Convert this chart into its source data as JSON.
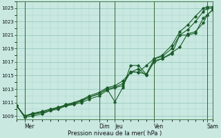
{
  "xlabel": "Pression niveau de la mer( hPa )",
  "background_color": "#c8e8e0",
  "grid_major_color": "#90c4b8",
  "grid_minor_color": "#a8d4cc",
  "line_color": "#1a5c28",
  "ylim": [
    1008.5,
    1026.0
  ],
  "yticks": [
    1009,
    1011,
    1013,
    1015,
    1017,
    1019,
    1021,
    1023,
    1025
  ],
  "xlim": [
    0,
    1.0
  ],
  "day_labels": [
    "Mer",
    "Dim",
    "Jeu",
    "Ven",
    "Sam"
  ],
  "day_positions": [
    0.04,
    0.42,
    0.5,
    0.7,
    0.97
  ],
  "lines": [
    {
      "x": [
        0.0,
        0.04,
        0.08,
        0.13,
        0.17,
        0.21,
        0.25,
        0.29,
        0.33,
        0.37,
        0.42,
        0.46,
        0.5,
        0.54,
        0.58,
        0.62,
        0.66,
        0.7,
        0.74,
        0.79,
        0.83,
        0.87,
        0.91,
        0.95,
        0.97,
        1.0
      ],
      "y": [
        1010.5,
        1009.0,
        1009.2,
        1009.5,
        1009.8,
        1010.2,
        1010.5,
        1010.7,
        1011.0,
        1011.5,
        1012.0,
        1012.8,
        1013.2,
        1013.5,
        1015.6,
        1015.5,
        1015.2,
        1017.0,
        1017.5,
        1018.2,
        1021.0,
        1021.0,
        1021.3,
        1023.5,
        1024.0,
        1024.8
      ]
    },
    {
      "x": [
        0.0,
        0.04,
        0.08,
        0.13,
        0.17,
        0.21,
        0.25,
        0.29,
        0.33,
        0.37,
        0.42,
        0.46,
        0.5,
        0.54,
        0.58,
        0.62,
        0.66,
        0.7,
        0.74,
        0.79,
        0.83,
        0.87,
        0.91,
        0.95,
        0.97,
        1.0
      ],
      "y": [
        1010.5,
        1009.0,
        1009.3,
        1009.6,
        1010.0,
        1010.3,
        1010.6,
        1010.9,
        1011.2,
        1011.8,
        1012.3,
        1013.0,
        1013.3,
        1013.8,
        1015.5,
        1016.0,
        1015.0,
        1017.2,
        1017.5,
        1018.4,
        1019.2,
        1021.2,
        1021.5,
        1022.8,
        1024.0,
        1024.8
      ]
    },
    {
      "x": [
        0.0,
        0.04,
        0.08,
        0.13,
        0.17,
        0.21,
        0.25,
        0.29,
        0.33,
        0.37,
        0.42,
        0.46,
        0.5,
        0.54,
        0.58,
        0.62,
        0.66,
        0.7,
        0.74,
        0.79,
        0.83,
        0.87,
        0.91,
        0.95,
        0.97,
        1.0
      ],
      "y": [
        1010.5,
        1009.0,
        1009.4,
        1009.7,
        1010.0,
        1010.2,
        1010.7,
        1011.0,
        1011.4,
        1012.0,
        1012.5,
        1013.2,
        1013.5,
        1014.2,
        1015.5,
        1015.5,
        1016.5,
        1017.5,
        1017.8,
        1019.0,
        1021.0,
        1021.8,
        1023.0,
        1024.5,
        1025.0,
        1025.0
      ]
    },
    {
      "x": [
        0.0,
        0.04,
        0.08,
        0.13,
        0.17,
        0.21,
        0.25,
        0.29,
        0.33,
        0.37,
        0.42,
        0.46,
        0.5,
        0.54,
        0.58,
        0.62,
        0.66,
        0.7,
        0.74,
        0.79,
        0.83,
        0.87,
        0.91,
        0.95,
        0.97,
        1.0
      ],
      "y": [
        1010.5,
        1008.8,
        1009.0,
        1009.3,
        1009.8,
        1010.0,
        1010.5,
        1010.8,
        1011.3,
        1011.8,
        1012.3,
        1013.0,
        1011.1,
        1013.2,
        1016.5,
        1016.5,
        1015.2,
        1017.5,
        1018.0,
        1019.5,
        1021.5,
        1022.5,
        1023.8,
        1025.0,
        1025.2,
        1025.2
      ]
    }
  ]
}
